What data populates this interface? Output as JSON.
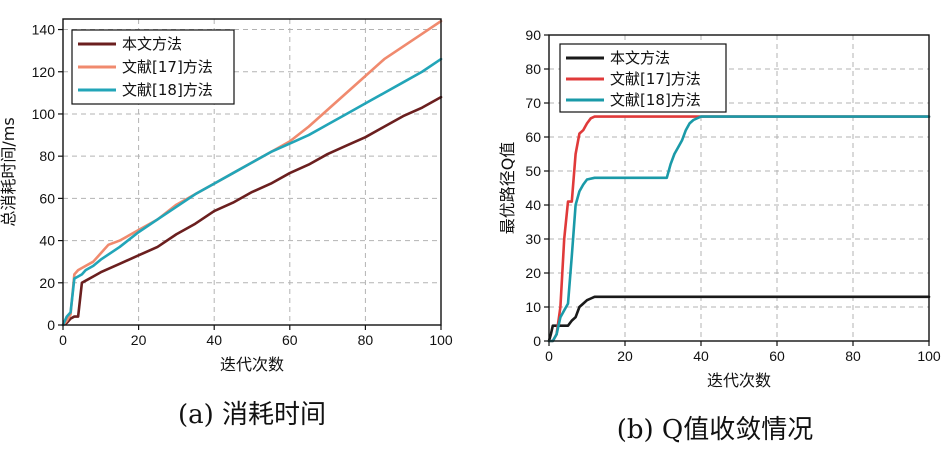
{
  "chart_data": [
    {
      "type": "line",
      "caption": "(a) 消耗时间",
      "xlabel": "迭代次数",
      "ylabel": "总消耗时间/ms",
      "xlim": [
        0,
        100
      ],
      "ylim": [
        0,
        145
      ],
      "xticks": [
        0,
        20,
        40,
        60,
        80,
        100
      ],
      "yticks": [
        0,
        20,
        40,
        60,
        80,
        100,
        120,
        140
      ],
      "grid": true,
      "legend_position": "top-left",
      "series": [
        {
          "name": "本文方法",
          "color": "#6b1f1f",
          "points": [
            [
              0,
              0
            ],
            [
              1,
              1
            ],
            [
              2,
              3
            ],
            [
              3,
              4
            ],
            [
              4,
              4
            ],
            [
              5,
              20
            ],
            [
              6,
              21
            ],
            [
              8,
              23
            ],
            [
              10,
              25
            ],
            [
              15,
              29
            ],
            [
              20,
              33
            ],
            [
              25,
              37
            ],
            [
              30,
              43
            ],
            [
              35,
              48
            ],
            [
              40,
              54
            ],
            [
              45,
              58
            ],
            [
              50,
              63
            ],
            [
              55,
              67
            ],
            [
              60,
              72
            ],
            [
              65,
              76
            ],
            [
              70,
              81
            ],
            [
              75,
              85
            ],
            [
              80,
              89
            ],
            [
              85,
              94
            ],
            [
              90,
              99
            ],
            [
              95,
              103
            ],
            [
              100,
              108
            ]
          ]
        },
        {
          "name": "文献[17]方法",
          "color": "#f08a6e",
          "points": [
            [
              0,
              0
            ],
            [
              1,
              2
            ],
            [
              2,
              5
            ],
            [
              3,
              24
            ],
            [
              4,
              26
            ],
            [
              5,
              27
            ],
            [
              6,
              28
            ],
            [
              8,
              30
            ],
            [
              10,
              34
            ],
            [
              12,
              38
            ],
            [
              15,
              40
            ],
            [
              20,
              45
            ],
            [
              25,
              50
            ],
            [
              30,
              57
            ],
            [
              35,
              62
            ],
            [
              40,
              67
            ],
            [
              45,
              72
            ],
            [
              50,
              77
            ],
            [
              55,
              82
            ],
            [
              60,
              87
            ],
            [
              65,
              94
            ],
            [
              70,
              102
            ],
            [
              75,
              110
            ],
            [
              80,
              118
            ],
            [
              85,
              126
            ],
            [
              90,
              132
            ],
            [
              95,
              138
            ],
            [
              100,
              144
            ]
          ]
        },
        {
          "name": "文献[18]方法",
          "color": "#22a5b8",
          "points": [
            [
              0,
              0
            ],
            [
              1,
              4
            ],
            [
              2,
              6
            ],
            [
              3,
              22
            ],
            [
              4,
              23
            ],
            [
              5,
              24
            ],
            [
              6,
              26
            ],
            [
              8,
              28
            ],
            [
              10,
              31
            ],
            [
              15,
              37
            ],
            [
              20,
              44
            ],
            [
              25,
              50
            ],
            [
              30,
              56
            ],
            [
              35,
              62
            ],
            [
              40,
              67
            ],
            [
              45,
              72
            ],
            [
              50,
              77
            ],
            [
              55,
              82
            ],
            [
              60,
              86
            ],
            [
              65,
              90
            ],
            [
              70,
              95
            ],
            [
              75,
              100
            ],
            [
              80,
              105
            ],
            [
              85,
              110
            ],
            [
              90,
              115
            ],
            [
              95,
              120
            ],
            [
              100,
              126
            ]
          ]
        }
      ]
    },
    {
      "type": "line",
      "caption": "(b) Q值收敛情况",
      "xlabel": "迭代次数",
      "ylabel": "最优路径Q值",
      "xlim": [
        0,
        100
      ],
      "ylim": [
        0,
        90
      ],
      "xticks": [
        0,
        20,
        40,
        60,
        80,
        100
      ],
      "yticks": [
        0,
        10,
        20,
        30,
        40,
        50,
        60,
        70,
        80,
        90
      ],
      "grid": true,
      "legend_position": "top-left",
      "series": [
        {
          "name": "本文方法",
          "color": "#1a1a1a",
          "points": [
            [
              0,
              0
            ],
            [
              0.5,
              2
            ],
            [
              1,
              4.5
            ],
            [
              2,
              4.5
            ],
            [
              3,
              4.5
            ],
            [
              4,
              4.5
            ],
            [
              5,
              4.5
            ],
            [
              6,
              6
            ],
            [
              7,
              7
            ],
            [
              8,
              10
            ],
            [
              9,
              11
            ],
            [
              10,
              12
            ],
            [
              11,
              12.5
            ],
            [
              12,
              13
            ],
            [
              15,
              13
            ],
            [
              20,
              13
            ],
            [
              100,
              13
            ]
          ]
        },
        {
          "name": "文献[17]方法",
          "color": "#e03a3a",
          "points": [
            [
              0,
              0
            ],
            [
              1,
              0
            ],
            [
              2,
              2
            ],
            [
              3,
              10
            ],
            [
              4,
              30
            ],
            [
              5,
              41
            ],
            [
              6,
              41
            ],
            [
              7,
              55
            ],
            [
              8,
              61
            ],
            [
              9,
              62
            ],
            [
              10,
              64
            ],
            [
              11,
              65.5
            ],
            [
              12,
              66
            ],
            [
              15,
              66
            ],
            [
              20,
              66
            ],
            [
              100,
              66
            ]
          ]
        },
        {
          "name": "文献[18]方法",
          "color": "#1a9aa8",
          "points": [
            [
              0,
              0
            ],
            [
              1,
              0
            ],
            [
              2,
              2
            ],
            [
              3,
              7
            ],
            [
              4,
              9
            ],
            [
              5,
              11
            ],
            [
              6,
              25
            ],
            [
              7,
              40
            ],
            [
              8,
              44
            ],
            [
              9,
              46
            ],
            [
              10,
              47.5
            ],
            [
              12,
              48
            ],
            [
              20,
              48
            ],
            [
              31,
              48
            ],
            [
              32,
              52
            ],
            [
              33,
              55
            ],
            [
              34,
              57
            ],
            [
              35,
              59
            ],
            [
              36,
              62
            ],
            [
              37,
              64
            ],
            [
              38,
              65
            ],
            [
              40,
              66
            ],
            [
              100,
              66
            ]
          ]
        }
      ]
    }
  ]
}
